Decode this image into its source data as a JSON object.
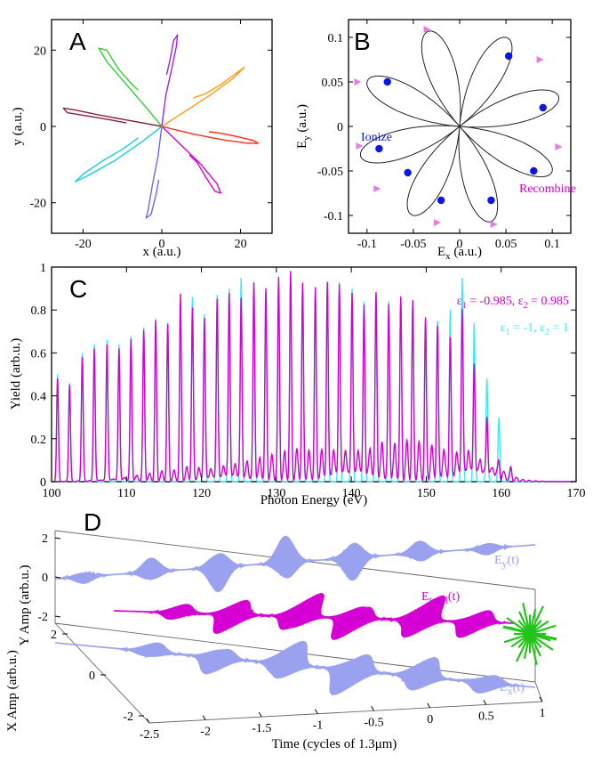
{
  "colors": {
    "magenta": "#d400d4",
    "cyan": "#40e8f4",
    "lavender": "#9aa2ef",
    "green": "#22c41a",
    "blue": "#0a16e6",
    "pink": "#e67ae6",
    "traj": [
      "#d400d4",
      "#6e63ff",
      "#1fb0ff",
      "#2bd4d4",
      "#8a1f44",
      "#2dd22d",
      "#a020f0",
      "#ff9a1a",
      "#ff2a1a"
    ]
  },
  "chart_data": [
    {
      "panel": "A",
      "type": "line",
      "xlabel": "x (a.u.)",
      "ylabel": "y (a.u.)",
      "xlim": [
        -28,
        28
      ],
      "ylim": [
        -28,
        28
      ],
      "xticks": [
        -20,
        0,
        20
      ],
      "yticks": [
        -20,
        0,
        20
      ],
      "xtick_labels": [
        "-20",
        "0",
        "20"
      ],
      "ytick_labels": [
        "-20",
        "0",
        "20"
      ],
      "series": [
        {
          "color_index": 8,
          "path": [
            [
              0,
              0
            ],
            [
              8,
              -2
            ],
            [
              16,
              -3.6
            ],
            [
              22,
              -4.4
            ],
            [
              24.5,
              -4.4
            ],
            [
              23,
              -3.6
            ],
            [
              18,
              -2.4
            ],
            [
              14,
              -1.6
            ],
            [
              12,
              -1.4
            ]
          ]
        },
        {
          "color_index": 0,
          "path": [
            [
              0,
              0
            ],
            [
              5,
              -5
            ],
            [
              10,
              -10
            ],
            [
              14,
              -15
            ],
            [
              15,
              -17.5
            ],
            [
              13.5,
              -17
            ],
            [
              11,
              -13
            ],
            [
              9,
              -9.5
            ],
            [
              7,
              -7.5
            ]
          ]
        },
        {
          "color_index": 1,
          "path": [
            [
              0,
              0
            ],
            [
              -1,
              -8
            ],
            [
              -2.5,
              -16
            ],
            [
              -3.5,
              -22
            ],
            [
              -4,
              -24
            ],
            [
              -2.7,
              -23
            ],
            [
              -1.5,
              -18
            ],
            [
              -0.8,
              -14
            ]
          ]
        },
        {
          "color_index": 2,
          "path": [
            [
              0,
              0
            ],
            [
              -5,
              -4
            ],
            [
              -12,
              -9
            ],
            [
              -19,
              -13
            ],
            [
              -22,
              -14.5
            ],
            [
              -20,
              -12.5
            ],
            [
              -15,
              -9
            ],
            [
              -10,
              -6
            ],
            [
              -6,
              -3
            ]
          ]
        },
        {
          "color_index": 3,
          "path": [
            [
              0,
              0
            ],
            [
              -5,
              -4
            ],
            [
              -12,
              -9
            ],
            [
              -19,
              -13
            ],
            [
              -22,
              -14.5
            ],
            [
              -20,
              -12.5
            ],
            [
              -15,
              -9
            ],
            [
              -10,
              -6
            ],
            [
              -6,
              -3
            ]
          ]
        },
        {
          "color_index": 4,
          "path": [
            [
              0,
              0
            ],
            [
              -8,
              1.5
            ],
            [
              -16,
              3
            ],
            [
              -22,
              4.3
            ],
            [
              -25,
              4.8
            ],
            [
              -24,
              3.6
            ],
            [
              -18,
              2.6
            ],
            [
              -13,
              1.7
            ],
            [
              -9,
              0.9
            ]
          ]
        },
        {
          "color_index": 5,
          "path": [
            [
              0,
              0
            ],
            [
              -4,
              5
            ],
            [
              -9,
              11
            ],
            [
              -14,
              17
            ],
            [
              -16,
              20.5
            ],
            [
              -14,
              20
            ],
            [
              -11,
              15
            ],
            [
              -8,
              11.5
            ],
            [
              -6,
              9.5
            ]
          ]
        },
        {
          "color_index": 6,
          "path": [
            [
              0,
              0
            ],
            [
              1,
              8
            ],
            [
              2.5,
              15
            ],
            [
              3.7,
              21
            ],
            [
              4,
              24
            ],
            [
              3,
              22.5
            ],
            [
              2,
              17
            ],
            [
              1.2,
              13.5
            ]
          ]
        },
        {
          "color_index": 7,
          "path": [
            [
              0,
              0
            ],
            [
              6,
              4
            ],
            [
              12,
              8
            ],
            [
              18,
              12.5
            ],
            [
              21,
              15.5
            ],
            [
              19,
              14
            ],
            [
              15,
              11
            ],
            [
              11,
              8.5
            ],
            [
              8,
              7.5
            ]
          ]
        }
      ]
    },
    {
      "panel": "B",
      "type": "line",
      "xlabel": "E",
      "xlabel_sub": "x",
      "xlabel_unit": " (a.u.)",
      "ylabel": "E",
      "ylabel_sub": "y",
      "ylabel_unit": " (a.u.)",
      "xlim": [
        -0.12,
        0.12
      ],
      "ylim": [
        -0.12,
        0.12
      ],
      "xticks": [
        -0.1,
        -0.05,
        0,
        0.05,
        0.1
      ],
      "yticks": [
        -0.1,
        -0.05,
        0,
        0.05,
        0.1
      ],
      "xtick_labels": [
        "-0.1",
        "-0.05",
        "0",
        "0.05",
        "0.1"
      ],
      "ytick_labels": [
        "-0.1",
        "-0.05",
        "0",
        "0.05",
        "0.1"
      ],
      "petals": 8,
      "amplitude": 0.112,
      "ionize_points": [
        [
          0.053,
          0.079
        ],
        [
          0.09,
          0.021
        ],
        [
          0.08,
          -0.05
        ],
        [
          0.034,
          -0.083
        ],
        [
          -0.02,
          -0.083
        ],
        [
          -0.056,
          -0.052
        ],
        [
          -0.087,
          -0.025
        ],
        [
          -0.078,
          0.05
        ]
      ],
      "recombine_points": [
        [
          -0.035,
          0.109
        ],
        [
          0.087,
          0.075
        ],
        [
          0.107,
          -0.023
        ],
        [
          0.037,
          -0.11
        ],
        [
          -0.024,
          -0.108
        ],
        [
          -0.089,
          -0.07
        ],
        [
          -0.108,
          -0.022
        ],
        [
          -0.11,
          0.05
        ]
      ],
      "annotations": {
        "ionize": "Ionize",
        "recombine": "Recombine"
      }
    },
    {
      "panel": "C",
      "type": "line",
      "xlabel": "Photon Energy (eV)",
      "ylabel": "Yield (arb.u.)",
      "xlim": [
        100,
        170
      ],
      "ylim": [
        0,
        1
      ],
      "xticks": [
        100,
        110,
        120,
        130,
        140,
        150,
        160,
        170
      ],
      "yticks": [
        0,
        0.2,
        0.4,
        0.6,
        0.8,
        1
      ],
      "xtick_labels": [
        "100",
        "110",
        "120",
        "130",
        "140",
        "150",
        "160",
        "170"
      ],
      "ytick_labels": [
        "0",
        "0.2",
        "0.4",
        "0.6",
        "0.8",
        "1"
      ],
      "peak_energies": [
        100.8,
        102.4,
        104.1,
        105.7,
        107.4,
        109.0,
        110.6,
        112.3,
        113.9,
        115.5,
        117.2,
        118.8,
        120.4,
        122.1,
        123.7,
        125.3,
        127.0,
        128.6,
        130.3,
        131.9,
        133.5,
        135.2,
        136.8,
        138.4,
        140.1,
        141.7,
        143.3,
        145.0,
        146.6,
        148.2,
        149.9,
        151.5,
        153.2,
        154.8,
        156.4,
        158.1,
        159.7,
        161.3
      ],
      "series": [
        {
          "name_parts": [
            "ε",
            "1",
            " = -0.985, ε",
            "2",
            " = 0.985"
          ],
          "color": "#d400d4",
          "values": [
            0.48,
            0.45,
            0.58,
            0.62,
            0.64,
            0.62,
            0.66,
            0.7,
            0.74,
            0.72,
            0.86,
            0.8,
            0.76,
            0.85,
            0.88,
            0.85,
            0.92,
            0.88,
            0.93,
            0.95,
            0.9,
            0.88,
            0.92,
            0.92,
            0.88,
            0.82,
            0.86,
            0.8,
            0.82,
            0.8,
            0.72,
            0.7,
            0.65,
            0.8,
            0.55,
            0.3,
            0.08,
            0.05
          ]
        },
        {
          "name_parts": [
            "ε",
            "1",
            " = -1, ε",
            "2",
            " = 1"
          ],
          "color": "#40e8f4",
          "values": [
            0.5,
            0.46,
            0.6,
            0.64,
            0.66,
            0.64,
            0.68,
            0.72,
            0.76,
            0.74,
            0.82,
            0.86,
            0.78,
            0.87,
            0.9,
            0.95,
            0.93,
            0.9,
            0.94,
            0.96,
            0.91,
            0.89,
            0.93,
            0.93,
            0.9,
            0.84,
            0.88,
            0.84,
            0.86,
            0.82,
            0.76,
            0.75,
            0.8,
            0.95,
            0.74,
            0.48,
            0.3,
            0.07
          ]
        }
      ]
    },
    {
      "panel": "D",
      "type": "line",
      "xlabel": "Time (cycles of 1.3μm)",
      "ylabel_y": "Y Amp (arb.u.)",
      "ylabel_x": "X Amp (arb.u.)",
      "time_range": [
        -2.5,
        1
      ],
      "time_ticks": [
        -2.5,
        -2,
        -1.5,
        -1,
        -0.5,
        0,
        0.5,
        1
      ],
      "time_tick_labels": [
        "-2.5",
        "-2",
        "-1.5",
        "-1",
        "-0.5",
        "0",
        "0.5",
        "1"
      ],
      "yamp_ticks": [
        -2,
        0,
        2
      ],
      "yamp_tick_labels": [
        "-2",
        "0",
        "2"
      ],
      "xamp_ticks": [
        -2,
        0,
        2
      ],
      "xamp_tick_labels": [
        "-2",
        "0",
        "2"
      ],
      "series": [
        {
          "name": "E",
          "sub": "y",
          "suffix": "(t)",
          "color": "#9aa2ef"
        },
        {
          "name": "E",
          "sub": "total",
          "suffix": "(t)",
          "color": "#d400d4"
        },
        {
          "name": "E",
          "sub": "x",
          "suffix": "(t)",
          "color": "#9aa2ef"
        }
      ]
    }
  ]
}
